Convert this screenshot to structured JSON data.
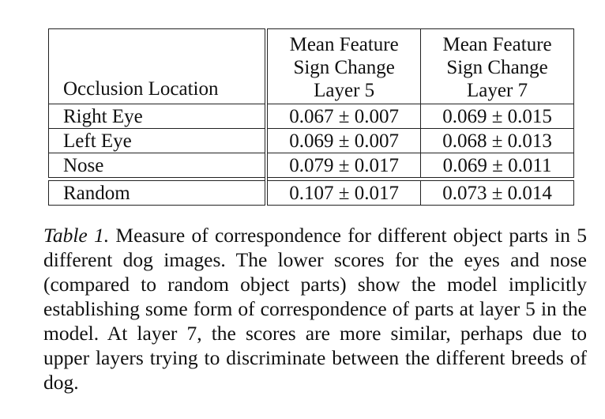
{
  "table": {
    "headers": {
      "location": "Occlusion Location",
      "layer5": [
        "Mean Feature",
        "Sign Change",
        "Layer 5"
      ],
      "layer7": [
        "Mean Feature",
        "Sign Change",
        "Layer 7"
      ]
    },
    "rows": [
      {
        "location": "Right Eye",
        "layer5": "0.067 ± 0.007",
        "layer7": "0.069 ± 0.015"
      },
      {
        "location": "Left Eye",
        "layer5": "0.069 ± 0.007",
        "layer7": "0.068 ± 0.013"
      },
      {
        "location": "Nose",
        "layer5": "0.079 ± 0.017",
        "layer7": "0.069 ± 0.011"
      }
    ],
    "separated_row": {
      "location": "Random",
      "layer5": "0.107 ± 0.017",
      "layer7": "0.073 ± 0.014"
    }
  },
  "caption": {
    "label": "Table 1.",
    "text": "Measure of correspondence for different object parts in 5 different dog images. The lower scores for the eyes and nose (compared to random object parts) show the model implicitly establishing some form of correspondence of parts at layer 5 in the model. At layer 7, the scores are more similar, perhaps due to upper layers trying to discriminate between the different breeds of dog."
  }
}
